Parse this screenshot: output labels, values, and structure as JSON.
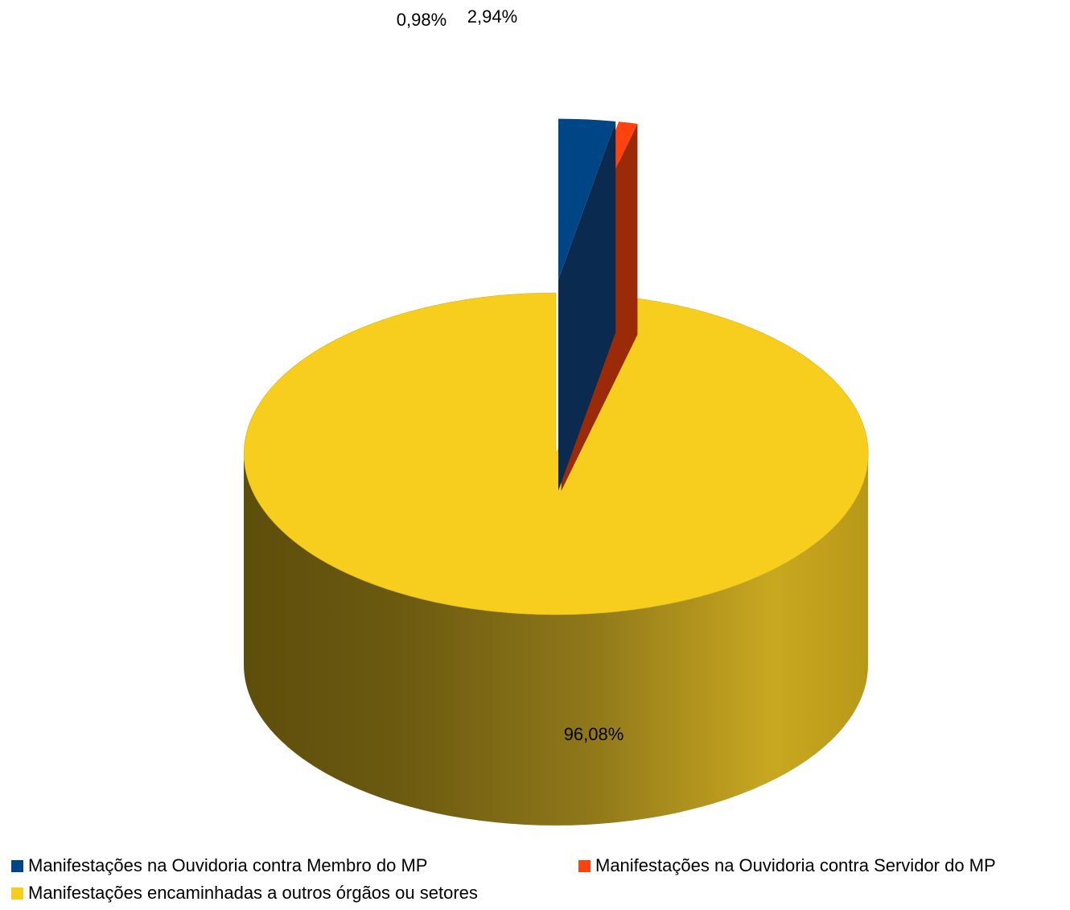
{
  "chart_data": {
    "type": "pie",
    "title": "",
    "categories": [
      "Manifestações na Ouvidoria contra Membro do MP",
      "Manifestações na Ouvidoria contra Servidor do MP",
      "Manifestações encaminhadas a outros órgãos ou setores"
    ],
    "values": [
      2.94,
      0.98,
      96.08
    ],
    "data_labels": [
      "2,94%",
      "0,98%",
      "96,08%"
    ],
    "colors": [
      "#004586",
      "#ff420e",
      "#f8ce1e"
    ],
    "exploded": [
      true,
      true,
      false
    ],
    "three_d": true,
    "legend_position": "bottom"
  }
}
